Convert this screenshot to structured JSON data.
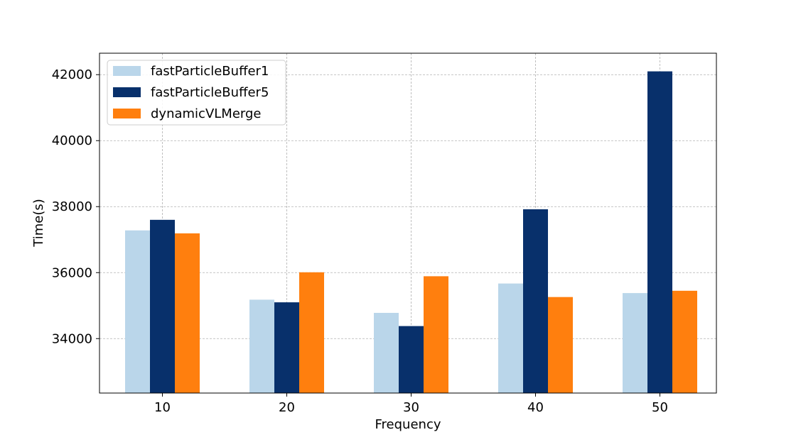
{
  "chart_data": {
    "type": "bar",
    "title": "",
    "xlabel": "Frequency",
    "ylabel": "Time(s)",
    "categories": [
      "10",
      "20",
      "30",
      "40",
      "50"
    ],
    "series": [
      {
        "name": "fastParticleBuffer1",
        "color": "#bad6ea",
        "values": [
          37280,
          35180,
          34780,
          35670,
          35380
        ]
      },
      {
        "name": "fastParticleBuffer5",
        "color": "#08306b",
        "values": [
          37600,
          35100,
          34380,
          37920,
          42100
        ]
      },
      {
        "name": "dynamicVLMerge",
        "color": "#ff7f0e",
        "values": [
          37190,
          36010,
          35890,
          35260,
          35450
        ]
      }
    ],
    "ylim": [
      32350,
      42650
    ],
    "yticks": [
      34000,
      36000,
      38000,
      40000,
      42000
    ],
    "grid": true,
    "legend_position": "top-left"
  }
}
